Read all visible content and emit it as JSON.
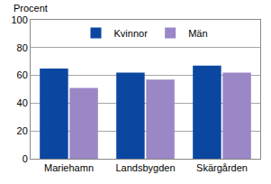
{
  "chart_data": {
    "type": "bar",
    "y_label": "Procent",
    "categories": [
      "Mariehamn",
      "Landsbygden",
      "Skärgården"
    ],
    "series": [
      {
        "name": "Kvinnor",
        "color": "#0b47a1",
        "values": [
          65,
          62,
          67
        ]
      },
      {
        "name": "Män",
        "color": "#9b86c6",
        "values": [
          51,
          57,
          62
        ]
      }
    ],
    "ylim": [
      0,
      100
    ],
    "yticks": [
      0,
      20,
      40,
      60,
      80,
      100
    ],
    "grid": true,
    "legend": "top"
  }
}
